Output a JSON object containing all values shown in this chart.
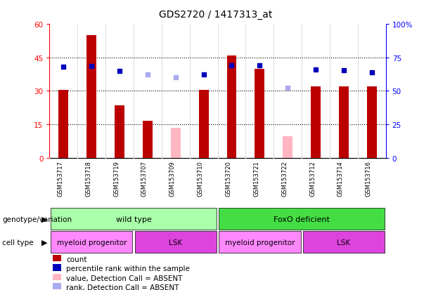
{
  "title": "GDS2720 / 1417313_at",
  "samples": [
    "GSM153717",
    "GSM153718",
    "GSM153719",
    "GSM153707",
    "GSM153709",
    "GSM153710",
    "GSM153720",
    "GSM153721",
    "GSM153722",
    "GSM153712",
    "GSM153714",
    "GSM153716"
  ],
  "counts": [
    30.5,
    55.0,
    23.5,
    16.5,
    null,
    30.5,
    46.0,
    40.0,
    null,
    32.0,
    32.0,
    32.0
  ],
  "absent_count": [
    null,
    null,
    null,
    null,
    13.5,
    null,
    null,
    null,
    9.5,
    null,
    null,
    null
  ],
  "ranks_pct": [
    68.0,
    68.5,
    65.0,
    null,
    null,
    62.5,
    69.0,
    69.0,
    null,
    66.0,
    65.5,
    64.0
  ],
  "absent_rank_pct": [
    null,
    null,
    null,
    62.5,
    60.0,
    null,
    null,
    null,
    52.5,
    null,
    null,
    null
  ],
  "left_ylim": [
    0,
    60
  ],
  "right_ylim": [
    0,
    100
  ],
  "left_yticks": [
    0,
    15,
    30,
    45,
    60
  ],
  "right_yticks": [
    0,
    25,
    50,
    75,
    100
  ],
  "right_yticklabels": [
    "0",
    "25",
    "50",
    "75",
    "100%"
  ],
  "bar_color": "#BB0000",
  "absent_bar_color": "#FFB6C1",
  "rank_color": "#0000BB",
  "absent_rank_color": "#AAAAEE",
  "plot_bg": "#FFFFFF",
  "label_bg": "#D0D0D0",
  "genotype_wt_color": "#AAFFAA",
  "genotype_fo_color": "#44DD44",
  "cell_myeloid_color": "#FF88FF",
  "cell_lsk_color": "#DD44DD",
  "genotype_wt_span": [
    0,
    5
  ],
  "genotype_fo_span": [
    6,
    11
  ],
  "cell_spans": [
    {
      "text": "myeloid progenitor",
      "start": 0,
      "end": 2,
      "color": "#FF88FF"
    },
    {
      "text": "LSK",
      "start": 3,
      "end": 5,
      "color": "#DD44DD"
    },
    {
      "text": "myeloid progenitor",
      "start": 6,
      "end": 8,
      "color": "#FF88FF"
    },
    {
      "text": "LSK",
      "start": 9,
      "end": 11,
      "color": "#DD44DD"
    }
  ],
  "legend_items": [
    {
      "label": "count",
      "color": "#BB0000"
    },
    {
      "label": "percentile rank within the sample",
      "color": "#0000BB"
    },
    {
      "label": "value, Detection Call = ABSENT",
      "color": "#FFB6C1"
    },
    {
      "label": "rank, Detection Call = ABSENT",
      "color": "#AAAAEE"
    }
  ]
}
